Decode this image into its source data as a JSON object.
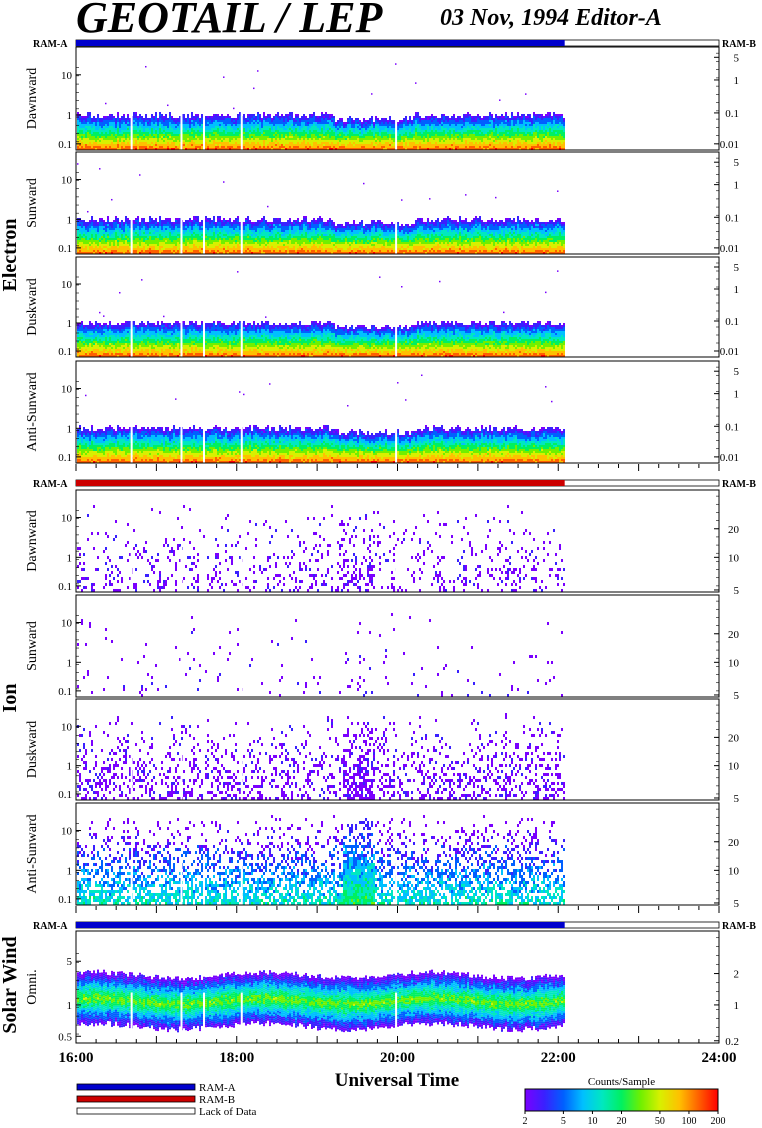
{
  "header": {
    "title": "GEOTAIL / LEP",
    "subtitle": "03 Nov, 1994   Editor-A"
  },
  "colors": {
    "ram_a": "#0000cc",
    "ram_b": "#cc0000",
    "lack_of_data": "#ffffff",
    "colormap": [
      "#7a00ff",
      "#3a20ff",
      "#0060ff",
      "#00c0ff",
      "#00e8c0",
      "#00f060",
      "#70f000",
      "#d8f000",
      "#ffc000",
      "#ff6000",
      "#ff0000"
    ]
  },
  "chart_data": {
    "type": "heatmap",
    "xlabel": "Universal Time",
    "x_ticks": [
      "16:00",
      "18:00",
      "20:00",
      "22:00",
      "24:00"
    ],
    "x_range_hours": [
      16,
      24
    ],
    "data_end_hour": 22.08,
    "data_gaps_hours": [
      16.68,
      17.3,
      17.58,
      18.05,
      19.97
    ],
    "groups": [
      {
        "name": "Electron",
        "ram_left": "RAM-A",
        "ram_right": "RAM-B",
        "ram_bar_color": "ram_a",
        "panels": [
          {
            "label": "Dawnward",
            "left_ticks": [
              "10",
              "1",
              "0.1"
            ],
            "right_ticks": [
              "5",
              "1",
              "0.1",
              "0.01"
            ],
            "band": "electron"
          },
          {
            "label": "Sunward",
            "left_ticks": [
              "10",
              "1",
              "0.1"
            ],
            "right_ticks": [
              "5",
              "1",
              "0.1",
              "0.01"
            ],
            "band": "electron"
          },
          {
            "label": "Duskward",
            "left_ticks": [
              "10",
              "1",
              "0.1"
            ],
            "right_ticks": [
              "5",
              "1",
              "0.1",
              "0.01"
            ],
            "band": "electron"
          },
          {
            "label": "Anti-Sunward",
            "left_ticks": [
              "10",
              "1",
              "0.1"
            ],
            "right_ticks": [
              "5",
              "1",
              "0.1",
              "0.01"
            ],
            "band": "electron"
          }
        ]
      },
      {
        "name": "Ion",
        "ram_left": "RAM-A",
        "ram_right": "RAM-B",
        "ram_bar_color": "ram_b",
        "panels": [
          {
            "label": "Dawnward",
            "left_ticks": [
              "10",
              "1",
              "0.1"
            ],
            "right_ticks": [
              "20",
              "10",
              "5"
            ],
            "band": "ion_sparse"
          },
          {
            "label": "Sunward",
            "left_ticks": [
              "10",
              "1",
              "0.1"
            ],
            "right_ticks": [
              "20",
              "10",
              "5"
            ],
            "band": "ion_very_sparse"
          },
          {
            "label": "Duskward",
            "left_ticks": [
              "10",
              "1",
              "0.1"
            ],
            "right_ticks": [
              "20",
              "10",
              "5"
            ],
            "band": "ion_medium"
          },
          {
            "label": "Anti-Sunward",
            "left_ticks": [
              "10",
              "1",
              "0.1"
            ],
            "right_ticks": [
              "20",
              "10",
              "5"
            ],
            "band": "ion_dense"
          }
        ]
      },
      {
        "name": "Solar Wind",
        "ram_left": "RAM-A",
        "ram_right": "RAM-B",
        "ram_bar_color": "ram_a",
        "panels": [
          {
            "label": "Omni.",
            "left_ticks": [
              "5",
              "1",
              "0.5"
            ],
            "right_ticks": [
              "2",
              "1",
              "0.2"
            ],
            "band": "solar"
          }
        ]
      }
    ],
    "colorbar": {
      "label": "Counts/Sample",
      "ticks": [
        "2",
        "5",
        "10",
        "20",
        "50",
        "100",
        "200"
      ],
      "range": [
        2,
        200
      ],
      "scale": "log"
    },
    "legend": [
      {
        "label": "RAM-A",
        "color": "ram_a"
      },
      {
        "label": "RAM-B",
        "color": "ram_b"
      },
      {
        "label": "Lack of Data",
        "color": "lack_of_data"
      }
    ]
  }
}
